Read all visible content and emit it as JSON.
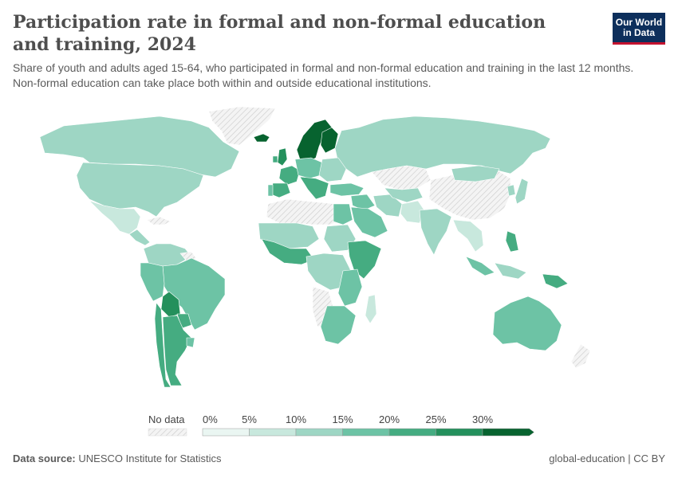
{
  "header": {
    "title": "Participation rate in formal and non-formal education and training, 2024",
    "subtitle": "Share of youth and adults aged 15-64, who participated in formal and non-formal education and training in the last 12 months. Non-formal education can take place both within and outside educational institutions.",
    "logo_line1": "Our World",
    "logo_line2": "in Data"
  },
  "legend": {
    "no_data_label": "No data",
    "tick_labels": [
      "0%",
      "5%",
      "10%",
      "15%",
      "20%",
      "25%",
      "30%"
    ],
    "bin_colors": [
      "#eaf6f2",
      "#c8e8dd",
      "#9ed6c4",
      "#6dc3a5",
      "#45ac81",
      "#24905c",
      "#07632f"
    ]
  },
  "footer": {
    "source_label": "Data source:",
    "source_value": "UNESCO Institute for Statistics",
    "right_text": "global-education | CC BY"
  }
}
